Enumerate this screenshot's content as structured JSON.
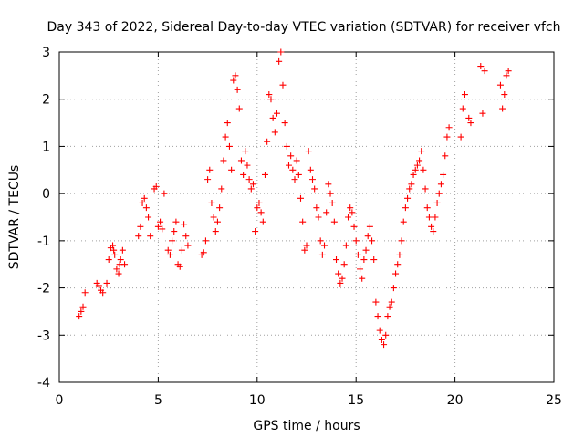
{
  "chart_data": {
    "type": "scatter",
    "title": "Day 343 of 2022, Sidereal Day-to-day VTEC variation (SDTVAR) for receiver vfch",
    "xlabel": "GPS time / hours",
    "ylabel": "SDTVAR / TECUs",
    "xlim": [
      0,
      25
    ],
    "ylim": [
      -4,
      3
    ],
    "xticks": [
      0,
      5,
      10,
      15,
      20,
      25
    ],
    "yticks": [
      -4,
      -3,
      -2,
      -1,
      0,
      1,
      2,
      3
    ],
    "xtick_labels": [
      "0",
      "5",
      "10",
      "15",
      "20",
      "25"
    ],
    "ytick_labels": [
      "-4",
      "-3",
      "-2",
      "-1",
      "0",
      "1",
      "2",
      "3"
    ],
    "grid": true,
    "marker": "+",
    "color": "#ff0000",
    "series": [
      {
        "name": "SDTVAR",
        "x": [
          1.0,
          1.1,
          1.2,
          1.3,
          1.9,
          2.0,
          2.1,
          2.2,
          2.4,
          2.5,
          2.6,
          2.7,
          2.75,
          2.8,
          2.9,
          3.0,
          3.05,
          3.1,
          3.2,
          3.3,
          4.0,
          4.1,
          4.2,
          4.3,
          4.4,
          4.5,
          4.6,
          4.8,
          4.9,
          5.0,
          5.1,
          5.2,
          5.3,
          5.5,
          5.6,
          5.7,
          5.8,
          5.9,
          6.0,
          6.1,
          6.2,
          6.3,
          6.4,
          6.5,
          7.2,
          7.3,
          7.4,
          7.5,
          7.6,
          7.7,
          7.8,
          7.9,
          8.0,
          8.1,
          8.2,
          8.3,
          8.4,
          8.5,
          8.6,
          8.7,
          8.8,
          8.9,
          9.0,
          9.1,
          9.2,
          9.3,
          9.4,
          9.5,
          9.6,
          9.7,
          9.8,
          9.9,
          10.0,
          10.1,
          10.2,
          10.3,
          10.4,
          10.5,
          10.6,
          10.7,
          10.8,
          10.9,
          11.0,
          11.1,
          11.2,
          11.3,
          11.4,
          11.5,
          11.6,
          11.7,
          11.8,
          11.9,
          12.0,
          12.1,
          12.2,
          12.3,
          12.4,
          12.5,
          12.6,
          12.7,
          12.8,
          12.9,
          13.0,
          13.1,
          13.2,
          13.3,
          13.4,
          13.5,
          13.6,
          13.7,
          13.8,
          13.9,
          14.0,
          14.1,
          14.2,
          14.3,
          14.4,
          14.5,
          14.6,
          14.7,
          14.8,
          14.9,
          15.0,
          15.1,
          15.2,
          15.3,
          15.4,
          15.5,
          15.6,
          15.7,
          15.8,
          15.9,
          16.0,
          16.1,
          16.2,
          16.3,
          16.4,
          16.5,
          16.6,
          16.7,
          16.8,
          16.9,
          17.0,
          17.1,
          17.2,
          17.3,
          17.4,
          17.5,
          17.6,
          17.7,
          17.8,
          17.9,
          18.0,
          18.1,
          18.2,
          18.3,
          18.4,
          18.5,
          18.6,
          18.7,
          18.8,
          18.9,
          19.0,
          19.1,
          19.2,
          19.3,
          19.4,
          19.5,
          19.6,
          19.7,
          20.3,
          20.4,
          20.5,
          20.7,
          20.8,
          21.3,
          21.4,
          21.5,
          22.3,
          22.4,
          22.5,
          22.6,
          22.7
        ],
        "y": [
          -2.6,
          -2.5,
          -2.4,
          -2.1,
          -1.9,
          -1.95,
          -2.05,
          -2.1,
          -1.9,
          -1.4,
          -1.15,
          -1.1,
          -1.2,
          -1.3,
          -1.6,
          -1.7,
          -1.5,
          -1.4,
          -1.2,
          -1.5,
          -0.9,
          -0.7,
          -0.2,
          -0.1,
          -0.3,
          -0.5,
          -0.9,
          0.1,
          0.15,
          -0.7,
          -0.6,
          -0.75,
          0.0,
          -1.2,
          -1.3,
          -1.0,
          -0.8,
          -0.6,
          -1.5,
          -1.55,
          -1.2,
          -0.65,
          -0.9,
          -1.1,
          -1.3,
          -1.25,
          -1.0,
          0.3,
          0.5,
          -0.2,
          -0.5,
          -0.8,
          -0.6,
          -0.3,
          0.1,
          0.7,
          1.2,
          1.5,
          1.0,
          0.5,
          2.4,
          2.5,
          2.2,
          1.8,
          0.7,
          0.4,
          0.9,
          0.6,
          0.3,
          0.1,
          0.2,
          -0.8,
          -0.3,
          -0.2,
          -0.4,
          -0.6,
          0.4,
          1.1,
          2.1,
          2.0,
          1.6,
          1.3,
          1.7,
          2.8,
          3.0,
          2.3,
          1.5,
          1.0,
          0.6,
          0.8,
          0.5,
          0.3,
          0.7,
          0.4,
          -0.1,
          -0.6,
          -1.2,
          -1.1,
          0.9,
          0.5,
          0.3,
          0.1,
          -0.3,
          -0.5,
          -1.0,
          -1.3,
          -1.1,
          -0.4,
          0.2,
          0.0,
          -0.2,
          -0.6,
          -1.4,
          -1.7,
          -1.9,
          -1.8,
          -1.5,
          -1.1,
          -0.5,
          -0.3,
          -0.4,
          -0.7,
          -1.0,
          -1.3,
          -1.6,
          -1.8,
          -1.4,
          -1.2,
          -0.9,
          -0.7,
          -1.0,
          -1.4,
          -2.3,
          -2.6,
          -2.9,
          -3.1,
          -3.2,
          -3.0,
          -2.6,
          -2.4,
          -2.3,
          -2.0,
          -1.7,
          -1.5,
          -1.3,
          -1.0,
          -0.6,
          -0.3,
          -0.1,
          0.1,
          0.2,
          0.4,
          0.5,
          0.6,
          0.7,
          0.9,
          0.5,
          0.1,
          -0.3,
          -0.5,
          -0.7,
          -0.8,
          -0.5,
          -0.2,
          0.0,
          0.2,
          0.4,
          0.8,
          1.2,
          1.4,
          1.2,
          1.8,
          2.1,
          1.6,
          1.5,
          2.7,
          1.7,
          2.6,
          2.3,
          1.8,
          2.1,
          2.5,
          2.6
        ]
      }
    ]
  }
}
